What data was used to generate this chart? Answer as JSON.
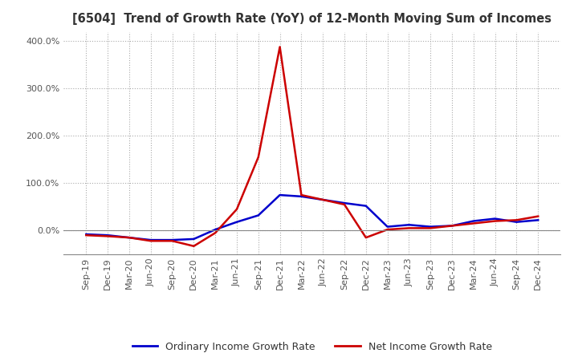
{
  "title": "[6504]  Trend of Growth Rate (YoY) of 12-Month Moving Sum of Incomes",
  "title_color": "#333333",
  "background_color": "#ffffff",
  "plot_background_color": "#ffffff",
  "grid_color": "#aaaaaa",
  "legend": [
    "Ordinary Income Growth Rate",
    "Net Income Growth Rate"
  ],
  "line_colors": [
    "#0000cc",
    "#cc0000"
  ],
  "x_labels": [
    "Sep-19",
    "Dec-19",
    "Mar-20",
    "Jun-20",
    "Sep-20",
    "Dec-20",
    "Mar-21",
    "Jun-21",
    "Sep-21",
    "Dec-21",
    "Mar-22",
    "Jun-22",
    "Sep-22",
    "Dec-22",
    "Mar-23",
    "Jun-23",
    "Sep-23",
    "Dec-23",
    "Mar-24",
    "Jun-24",
    "Sep-24",
    "Dec-24"
  ],
  "ordinary_income_growth": [
    -8,
    -10,
    -15,
    -20,
    -20,
    -18,
    2,
    18,
    32,
    75,
    72,
    65,
    58,
    52,
    8,
    12,
    8,
    10,
    20,
    25,
    18,
    22
  ],
  "net_income_growth": [
    -10,
    -12,
    -15,
    -22,
    -22,
    -33,
    -5,
    45,
    155,
    388,
    75,
    65,
    55,
    -15,
    2,
    5,
    5,
    10,
    15,
    20,
    22,
    30
  ],
  "ylim": [
    -50,
    420
  ],
  "yticks": [
    0,
    100,
    200,
    300,
    400
  ],
  "yticklabels": [
    "0.0%",
    "100.0%",
    "200.0%",
    "300.0%",
    "400.0%"
  ]
}
